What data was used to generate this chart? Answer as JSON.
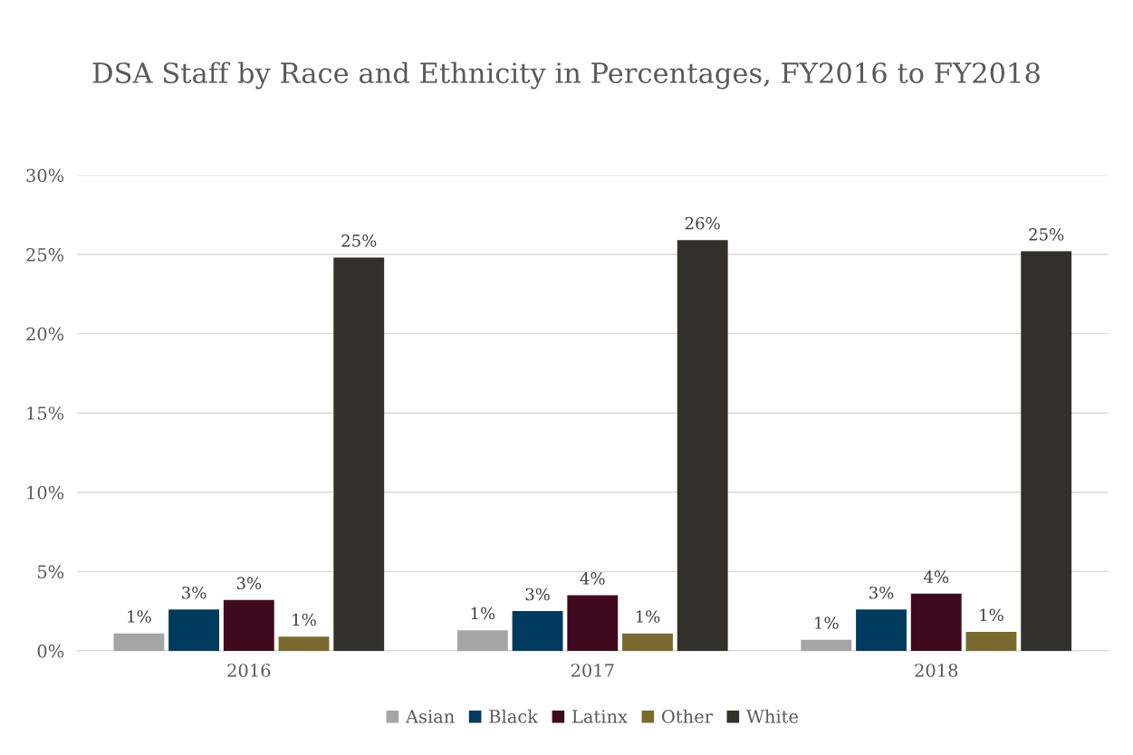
{
  "chart_data": {
    "type": "bar",
    "title": "DSA Staff by Race and Ethnicity in Percentages, FY2016 to FY2018",
    "categories": [
      "2016",
      "2017",
      "2018"
    ],
    "series": [
      {
        "name": "Asian",
        "color": "#a5a5a5",
        "values": [
          1.1,
          1.3,
          0.7
        ],
        "value_labels": [
          "1%",
          "1%",
          "1%"
        ]
      },
      {
        "name": "Black",
        "color": "#003a5c",
        "values": [
          2.6,
          2.5,
          2.6
        ],
        "value_labels": [
          "3%",
          "3%",
          "3%"
        ]
      },
      {
        "name": "Latinx",
        "color": "#3f0a1e",
        "values": [
          3.2,
          3.5,
          3.6
        ],
        "value_labels": [
          "3%",
          "4%",
          "4%"
        ]
      },
      {
        "name": "Other",
        "color": "#7b6a30",
        "values": [
          0.9,
          1.1,
          1.2
        ],
        "value_labels": [
          "1%",
          "1%",
          "1%"
        ]
      },
      {
        "name": "White",
        "color": "#31302b",
        "values": [
          24.8,
          25.9,
          25.2
        ],
        "value_labels": [
          "25%",
          "26%",
          "25%"
        ]
      }
    ],
    "ylim": [
      0,
      30
    ],
    "yticks": [
      {
        "value": 0,
        "label": "0%"
      },
      {
        "value": 5,
        "label": "5%"
      },
      {
        "value": 10,
        "label": "10%"
      },
      {
        "value": 15,
        "label": "15%"
      },
      {
        "value": 20,
        "label": "20%"
      },
      {
        "value": 25,
        "label": "25%"
      },
      {
        "value": 30,
        "label": "30%"
      }
    ],
    "grid": "y",
    "legend": "bottom"
  }
}
